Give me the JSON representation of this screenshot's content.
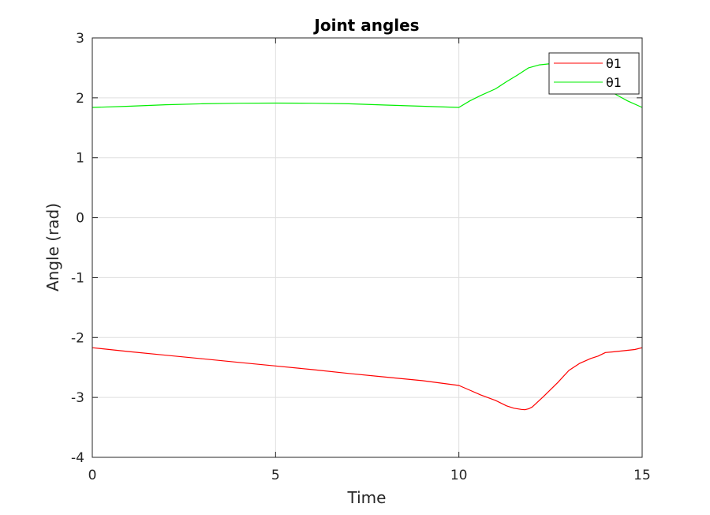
{
  "chart_data": {
    "type": "line",
    "title": "Joint angles",
    "xlabel": "Time",
    "ylabel": "Angle (rad)",
    "xlim": [
      0,
      15
    ],
    "ylim": [
      -4,
      3
    ],
    "xticks": [
      0,
      5,
      10,
      15
    ],
    "yticks": [
      -4,
      -3,
      -2,
      -1,
      0,
      1,
      2,
      3
    ],
    "grid": true,
    "legend_position": "top-right",
    "series": [
      {
        "name": "θ1",
        "color": "#ff0000",
        "x": [
          0,
          1,
          2,
          3,
          4,
          5,
          6,
          7,
          8,
          9,
          10,
          10.3,
          10.6,
          11.0,
          11.3,
          11.5,
          11.7,
          11.8,
          11.9,
          12.0,
          12.3,
          12.7,
          13.0,
          13.3,
          13.6,
          13.8,
          14.0,
          14.2,
          14.5,
          14.8,
          15.0
        ],
        "values": [
          -2.17,
          -2.235,
          -2.295,
          -2.355,
          -2.415,
          -2.475,
          -2.535,
          -2.6,
          -2.66,
          -2.72,
          -2.8,
          -2.88,
          -2.96,
          -3.05,
          -3.14,
          -3.18,
          -3.2,
          -3.205,
          -3.19,
          -3.16,
          -2.99,
          -2.75,
          -2.55,
          -2.43,
          -2.35,
          -2.31,
          -2.25,
          -2.24,
          -2.22,
          -2.2,
          -2.17
        ]
      },
      {
        "name": "θ1",
        "color": "#00ee00",
        "x": [
          0,
          1,
          2,
          3,
          4,
          5,
          6,
          7,
          8,
          9,
          10,
          10.3,
          10.6,
          11.0,
          11.3,
          11.6,
          11.9,
          12.2,
          12.5,
          12.8,
          13.0,
          13.3,
          13.6,
          14.0,
          14.3,
          14.6,
          15.0
        ],
        "values": [
          1.84,
          1.86,
          1.885,
          1.9,
          1.91,
          1.912,
          1.91,
          1.9,
          1.88,
          1.86,
          1.84,
          1.95,
          2.04,
          2.15,
          2.27,
          2.38,
          2.5,
          2.55,
          2.57,
          2.56,
          2.5,
          2.4,
          2.28,
          2.15,
          2.05,
          1.95,
          1.84
        ]
      }
    ]
  }
}
